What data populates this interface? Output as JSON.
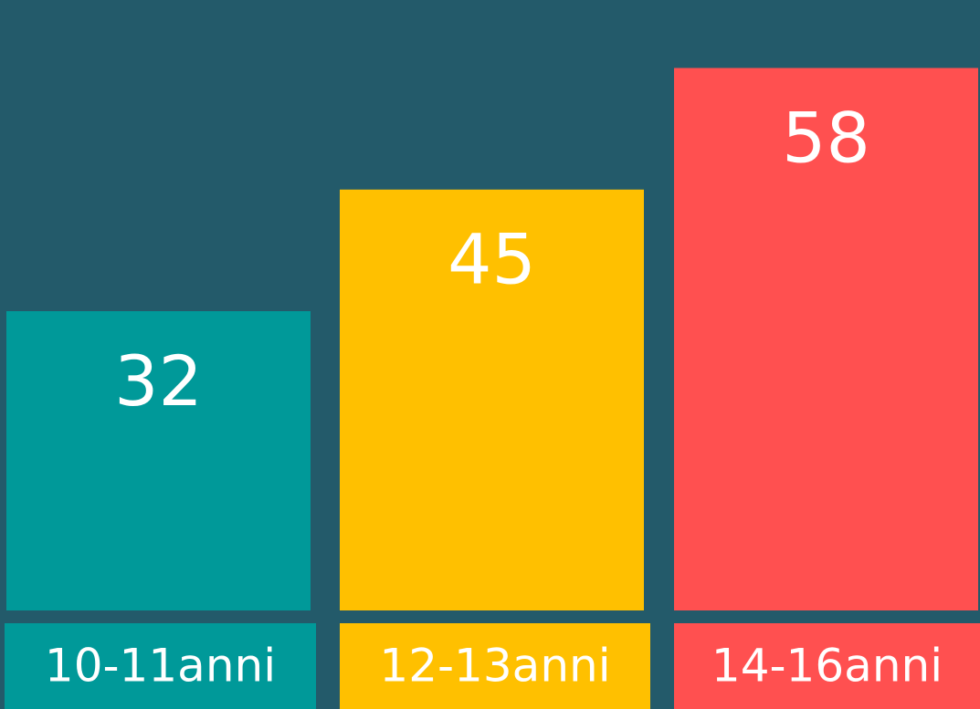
{
  "chart_data": {
    "type": "bar",
    "categories": [
      "10-11anni",
      "12-13anni",
      "14-16anni"
    ],
    "values": [
      32,
      45,
      58
    ],
    "colors": [
      "#009999",
      "#ffc000",
      "#ff5050"
    ]
  }
}
